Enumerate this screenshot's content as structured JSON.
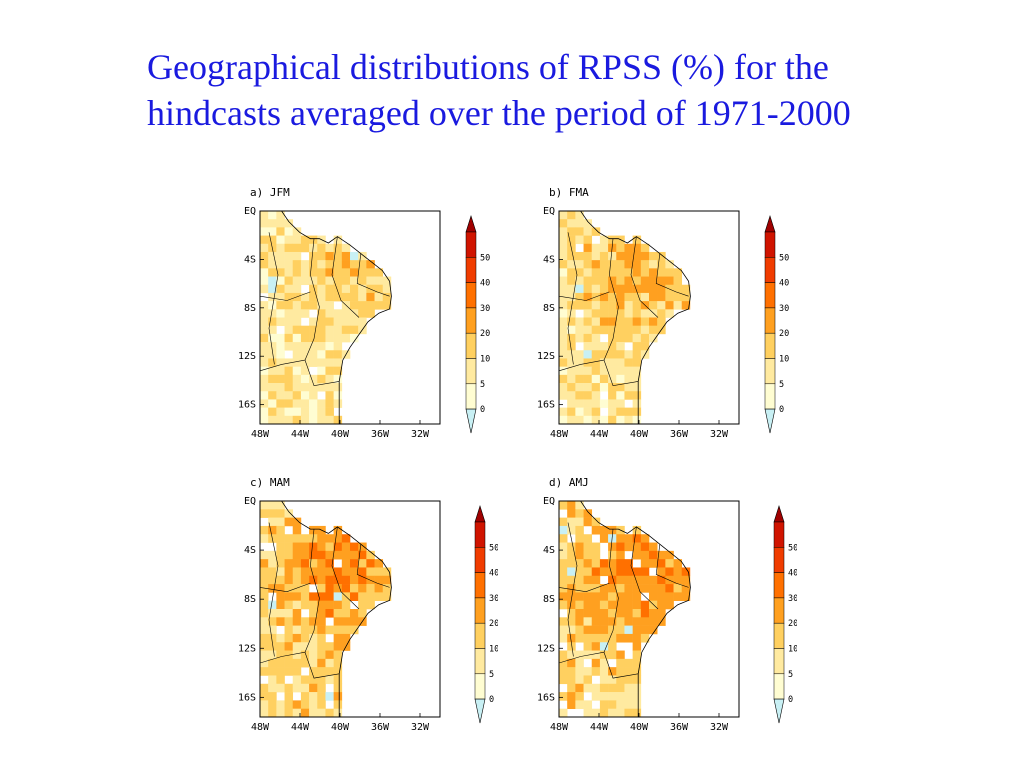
{
  "title": {
    "line1": "Geographical distributions of RPSS (%) for the",
    "line2": "hindcasts averaged over the period of 1971-2000"
  },
  "map_data": {
    "y_ticks": [
      "EQ",
      "4S",
      "8S",
      "12S",
      "16S"
    ],
    "x_ticks": [
      "48W",
      "44W",
      "40W",
      "36W",
      "32W"
    ],
    "colorbar": {
      "labels": [
        "0",
        "5",
        "10",
        "20",
        "30",
        "40",
        "50"
      ],
      "colors": [
        "#c8f0f4",
        "#fffdd2",
        "#ffeaa0",
        "#ffd060",
        "#ffa020",
        "#ff7000",
        "#f03c00",
        "#d01400",
        "#a00000"
      ]
    },
    "panels": [
      {
        "label": "a)  JFM",
        "intensity": 0.35
      },
      {
        "label": "b)  FMA",
        "intensity": 0.5
      },
      {
        "label": "c)  MAM",
        "intensity": 0.75
      },
      {
        "label": "d)  AMJ",
        "intensity": 0.8
      }
    ]
  }
}
